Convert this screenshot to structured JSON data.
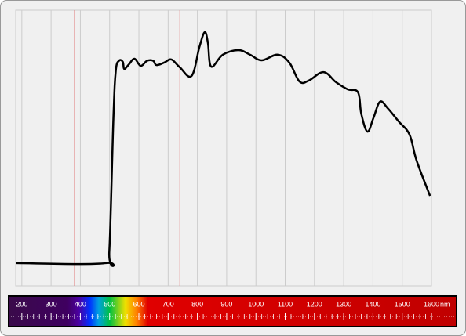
{
  "chart_data": {
    "type": "line",
    "x_unit": "nm",
    "xlim": [
      179,
      1600
    ],
    "ylim": [
      -9,
      100
    ],
    "xticks": [
      200,
      300,
      400,
      500,
      600,
      700,
      800,
      900,
      1000,
      1100,
      1200,
      1300,
      1400,
      1500,
      1600
    ],
    "grid": true,
    "visible_range": [
      380,
      740
    ],
    "series": [
      {
        "color": "#000000",
        "x": [
          180,
          486,
          499,
          513,
          521,
          532,
          545,
          550,
          566,
          585,
          606,
          628,
          649,
          660,
          687,
          711,
          740,
          780,
          807,
          825,
          836,
          847,
          887,
          940,
          980,
          1020,
          1074,
          1114,
          1149,
          1181,
          1231,
          1274,
          1314,
          1349,
          1360,
          1381,
          1402,
          1424,
          1450,
          1488,
          1525,
          1549,
          1595
        ],
        "values": [
          0,
          0,
          4.9,
          57.6,
          76,
          80,
          79.6,
          76.8,
          78.6,
          80.8,
          78,
          80,
          80,
          78.3,
          79.3,
          80.5,
          77.4,
          74,
          85.5,
          91.3,
          87,
          77.7,
          82.4,
          84.2,
          82.4,
          80.2,
          82.4,
          79.3,
          71.8,
          72.2,
          75.5,
          71.5,
          68.7,
          67.5,
          59.1,
          52,
          57.5,
          63.8,
          61.3,
          56,
          50.8,
          40.6,
          26.6
        ]
      }
    ]
  }
}
